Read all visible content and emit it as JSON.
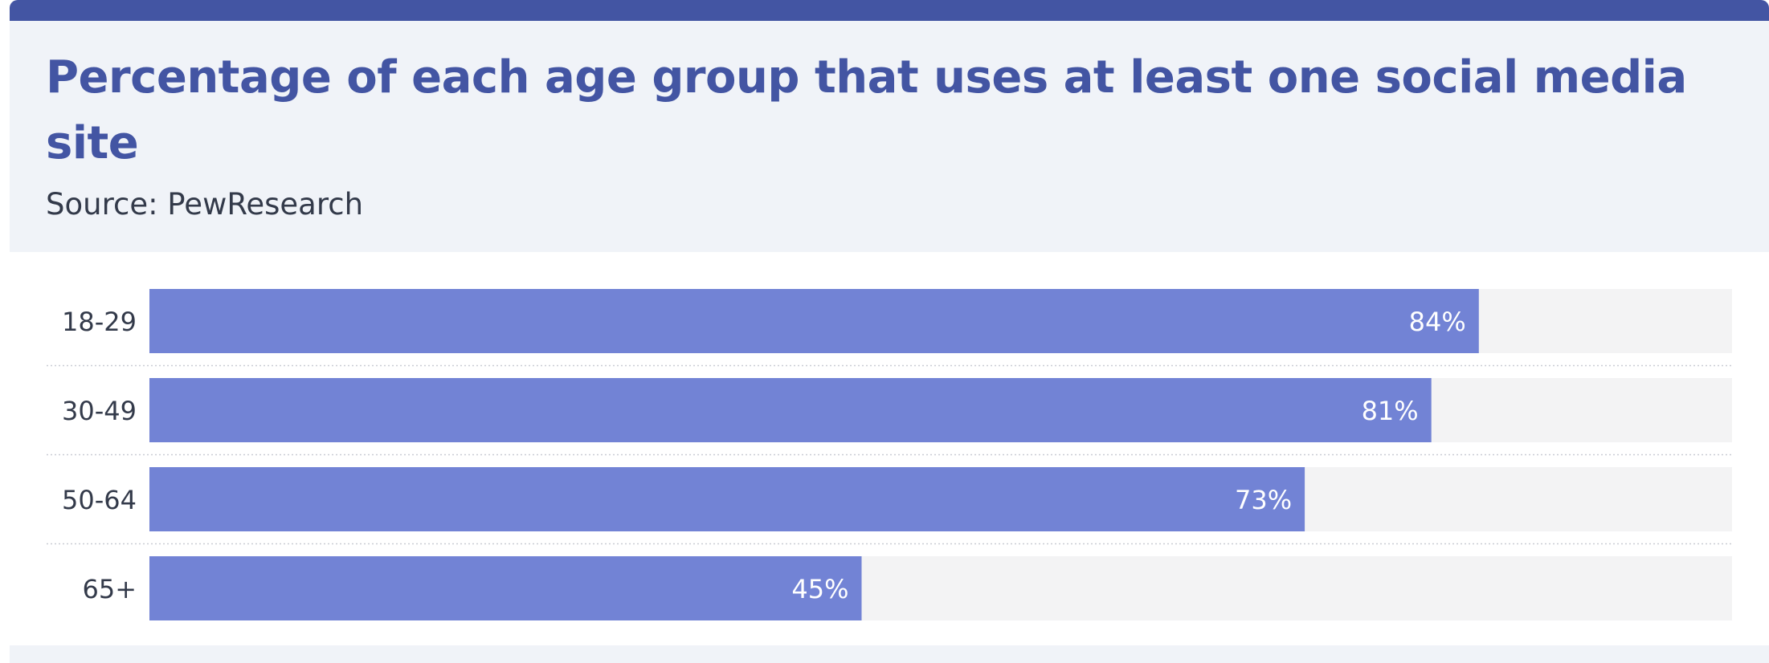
{
  "title": "Percentage of each age group that uses at least one social media site",
  "subtitle": "Source: PewResearch",
  "colors": {
    "accent": "#4355a3",
    "bar": "#7283d5",
    "track": "#f3f3f4",
    "header_bg": "#f0f3f8",
    "label_text": "#333a4a",
    "value_text": "#ffffff"
  },
  "chart_data": {
    "type": "bar",
    "orientation": "horizontal",
    "categories": [
      "18-29",
      "30-49",
      "50-64",
      "65+"
    ],
    "values": [
      84,
      81,
      73,
      45
    ],
    "value_labels": [
      "84%",
      "81%",
      "73%",
      "45%"
    ],
    "xlim": [
      0,
      100
    ],
    "title": "Percentage of each age group that uses at least one social media site",
    "subtitle": "Source: PewResearch",
    "xlabel": "",
    "ylabel": "",
    "grid": false,
    "legend": "none"
  }
}
